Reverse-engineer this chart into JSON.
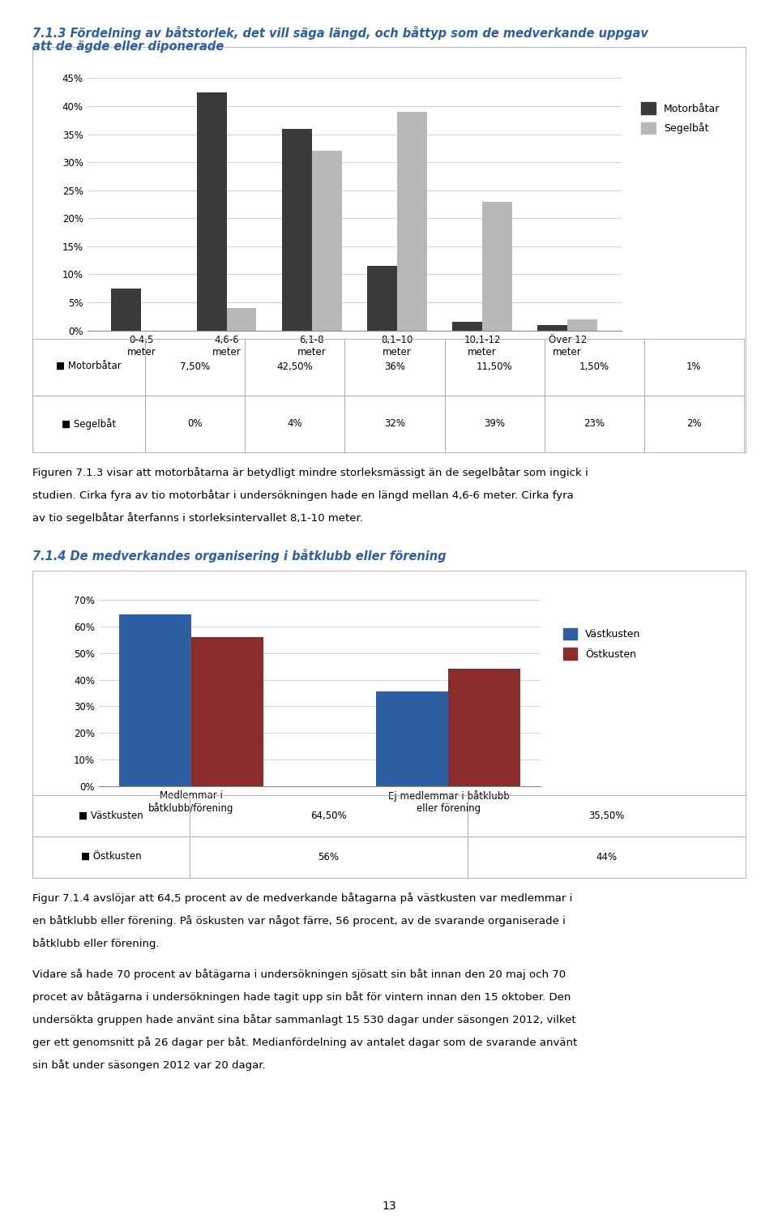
{
  "chart1": {
    "title_line1": "7.1.3 Fördelning av båtstorlek, det vill säga längd, och båttyp som de medverkande uppgav",
    "title_line2": "att de ägde eller diponerade",
    "categories": [
      "0-4,5\nmeter",
      "4,6-6\nmeter",
      "6,1-8\nmeter",
      "8,1–10\nmeter",
      "10,1-12\nmeter",
      "Över 12\nmeter"
    ],
    "motorbotar": [
      7.5,
      42.5,
      36.0,
      11.5,
      1.5,
      1.0
    ],
    "segelbat": [
      0.0,
      4.0,
      32.0,
      39.0,
      23.0,
      2.0
    ],
    "motorbotar_color": "#3a3a3a",
    "segelbat_color": "#b8b8b8",
    "legend_motorbotar": "Motorbåtar",
    "legend_segelbat": "Segelbåt",
    "yticks": [
      0,
      5,
      10,
      15,
      20,
      25,
      30,
      35,
      40,
      45
    ],
    "ytick_labels": [
      "0%",
      "5%",
      "10%",
      "15%",
      "20%",
      "25%",
      "30%",
      "35%",
      "40%",
      "45%"
    ],
    "table_row1_label": "Motorbåtar",
    "table_row1_values": [
      "7,50%",
      "42,50%",
      "36%",
      "11,50%",
      "1,50%",
      "1%"
    ],
    "table_row2_label": "Segelbåt",
    "table_row2_values": [
      "0%",
      "4%",
      "32%",
      "39%",
      "23%",
      "2%"
    ]
  },
  "text1_line1": "Figuren 7.1.3 visar att motorbåtarna är betydligt mindre storleksmässigt än de segelbåtar som ingick i",
  "text1_line2": "studien. Cirka fyra av tio motorbåtar i undersökningen hade en längd mellan 4,6-6 meter. Cirka fyra",
  "text1_line3": "av tio segelbåtar återfanns i storleksintervallet 8,1-10 meter.",
  "chart2": {
    "title": "7.1.4 De medverkandes organisering i båtklubb eller förening",
    "categories": [
      "Medlemmar i\nbåtklubb/förening",
      "Ej medlemmar i båtklubb\neller förening"
    ],
    "vastkusten": [
      64.5,
      35.5
    ],
    "ostkusten": [
      56.0,
      44.0
    ],
    "vastkusten_color": "#2e5fa3",
    "ostkusten_color": "#8b2c2c",
    "legend_vastkusten": "Västkusten",
    "legend_ostkusten": "Östkusten",
    "yticks": [
      0,
      10,
      20,
      30,
      40,
      50,
      60,
      70
    ],
    "ytick_labels": [
      "0%",
      "10%",
      "20%",
      "30%",
      "40%",
      "50%",
      "60%",
      "70%"
    ],
    "table_row1_label": "Västkusten",
    "table_row1_values": [
      "64,50%",
      "35,50%"
    ],
    "table_row2_label": "Östkusten",
    "table_row2_values": [
      "56%",
      "44%"
    ]
  },
  "text2_line1": "Figur 7.1.4 avslöjar att 64,5 procent av de medverkande båtagarna på västkusten var medlemmar i",
  "text2_line2": "en båtklubb eller förening. På öskusten var något färre, 56 procent, av de svarande organiserade i",
  "text2_line3": "båtklubb eller förening.",
  "text3_line1": "Vidare så hade 70 procent av båtägarna i undersökningen sjösatt sin båt innan den 20 maj och 70",
  "text3_line2": "procet av båtägarna i undersökningen hade tagit upp sin båt för vintern innan den 15 oktober. Den",
  "text3_line3": "undersökta gruppen hade använt sina båtar sammanlagt 15 530 dagar under säsongen 2012, vilket",
  "text3_line4": "ger ett genomsnitt på 26 dagar per båt. Medianfördelning av antalet dagar som de svarande använt",
  "text3_line5": "sin båt under säsongen 2012 var 20 dagar.",
  "page_number": "13",
  "bg_color": "#ffffff",
  "title1_color": "#2e5fa3",
  "title2_color": "#2e5fa3"
}
